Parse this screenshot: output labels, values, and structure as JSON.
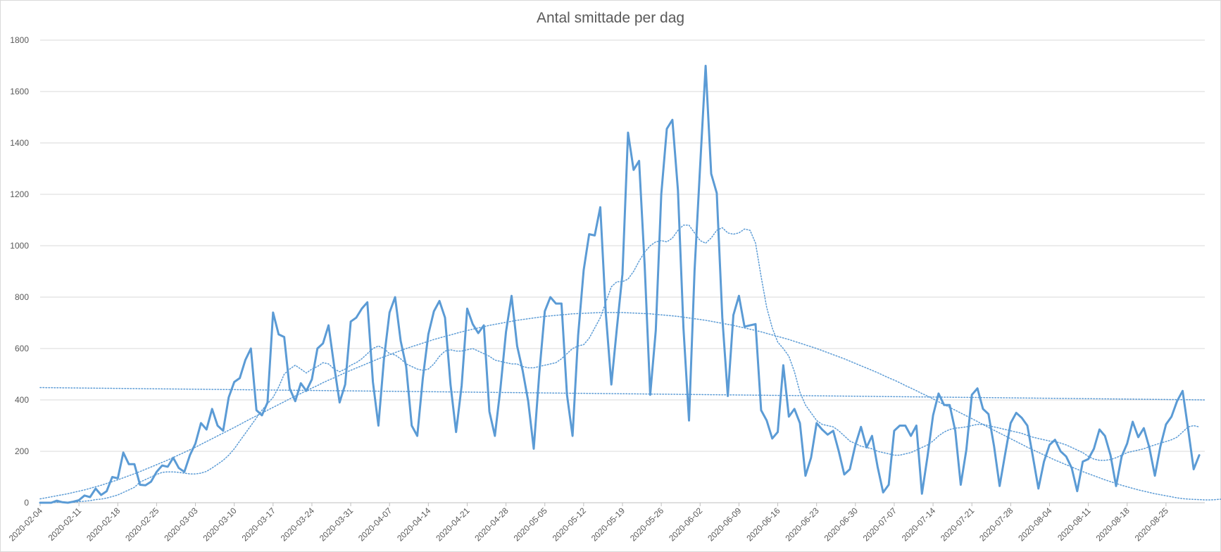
{
  "chart_data": {
    "type": "line",
    "title": "Antal smittade per dag",
    "xlabel": "",
    "ylabel": "",
    "ylim": [
      0,
      1800
    ],
    "yticks": [
      0,
      200,
      400,
      600,
      800,
      1000,
      1200,
      1400,
      1600,
      1800
    ],
    "grid": true,
    "legend": "none",
    "x_start": "2020-02-04",
    "x_end": "2020-09-01",
    "x_tick_labels": [
      "2020-02-04",
      "2020-02-11",
      "2020-02-18",
      "2020-02-25",
      "2020-03-03",
      "2020-03-10",
      "2020-03-17",
      "2020-03-24",
      "2020-03-31",
      "2020-04-07",
      "2020-04-14",
      "2020-04-21",
      "2020-04-28",
      "2020-05-05",
      "2020-05-12",
      "2020-05-19",
      "2020-05-26",
      "2020-06-02",
      "2020-06-09",
      "2020-06-16",
      "2020-06-23",
      "2020-06-30",
      "2020-07-07",
      "2020-07-14",
      "2020-07-21",
      "2020-07-28",
      "2020-08-04",
      "2020-08-11",
      "2020-08-18",
      "2020-08-25"
    ],
    "color": "#5b9bd5",
    "series": [
      {
        "style": "solid",
        "values": [
          0,
          0,
          0,
          8,
          2,
          0,
          4,
          10,
          28,
          22,
          55,
          30,
          45,
          100,
          95,
          195,
          150,
          150,
          70,
          68,
          82,
          120,
          145,
          140,
          175,
          135,
          120,
          185,
          230,
          310,
          285,
          365,
          300,
          280,
          410,
          470,
          485,
          555,
          600,
          360,
          340,
          390,
          740,
          655,
          645,
          445,
          395,
          465,
          435,
          480,
          600,
          620,
          690,
          535,
          390,
          460,
          705,
          720,
          755,
          780,
          470,
          300,
          560,
          740,
          800,
          630,
          530,
          300,
          260,
          485,
          655,
          745,
          785,
          720,
          460,
          275,
          455,
          755,
          695,
          660,
          690,
          355,
          260,
          445,
          665,
          805,
          610,
          515,
          395,
          210,
          505,
          745,
          800,
          775,
          775,
          420,
          260,
          650,
          905,
          1045,
          1040,
          1150,
          735,
          460,
          680,
          890,
          1440,
          1295,
          1330,
          925,
          420,
          670,
          1200,
          1455,
          1490,
          1215,
          680,
          320,
          905,
          1310,
          1700,
          1280,
          1205,
          720,
          415,
          730,
          805,
          685,
          690,
          695,
          360,
          320,
          250,
          275,
          535,
          335,
          365,
          310,
          105,
          175,
          310,
          285,
          265,
          280,
          200,
          110,
          130,
          225,
          295,
          215,
          260,
          140,
          40,
          70,
          280,
          300,
          300,
          260,
          300,
          35,
          180,
          340,
          425,
          380,
          380,
          280,
          70,
          205,
          420,
          445,
          365,
          345,
          220,
          65,
          190,
          310,
          350,
          330,
          300,
          180,
          55,
          160,
          225,
          245,
          200,
          180,
          135,
          45,
          160,
          170,
          210,
          285,
          260,
          185,
          65,
          180,
          230,
          315,
          255,
          290,
          215,
          105,
          220,
          305,
          335,
          395,
          435,
          285,
          130,
          185
        ]
      },
      {
        "style": "dotted",
        "note": "moving average",
        "values": [
          0,
          0,
          0,
          2,
          2,
          2,
          2,
          4,
          6,
          8,
          12,
          14,
          18,
          24,
          30,
          40,
          50,
          60,
          80,
          90,
          100,
          110,
          118,
          120,
          120,
          118,
          115,
          112,
          112,
          115,
          122,
          135,
          150,
          165,
          185,
          210,
          240,
          270,
          300,
          330,
          360,
          385,
          410,
          450,
          500,
          520,
          535,
          520,
          505,
          520,
          530,
          545,
          540,
          520,
          510,
          520,
          535,
          545,
          560,
          580,
          600,
          610,
          600,
          580,
          575,
          560,
          540,
          530,
          520,
          515,
          520,
          540,
          570,
          590,
          595,
          590,
          590,
          595,
          600,
          590,
          580,
          570,
          555,
          550,
          545,
          540,
          540,
          530,
          525,
          525,
          530,
          535,
          540,
          545,
          560,
          580,
          600,
          610,
          615,
          640,
          680,
          720,
          780,
          840,
          860,
          860,
          870,
          900,
          940,
          975,
          1000,
          1015,
          1020,
          1015,
          1030,
          1060,
          1080,
          1080,
          1050,
          1020,
          1010,
          1030,
          1060,
          1070,
          1050,
          1045,
          1050,
          1065,
          1060,
          1010,
          880,
          760,
          680,
          625,
          600,
          570,
          510,
          430,
          380,
          350,
          320,
          305,
          300,
          295,
          280,
          260,
          240,
          230,
          220,
          215,
          210,
          200,
          195,
          190,
          185,
          185,
          190,
          195,
          205,
          215,
          225,
          240,
          260,
          275,
          285,
          290,
          292,
          295,
          300,
          305,
          305,
          300,
          295,
          290,
          285,
          280,
          275,
          270,
          262,
          255,
          250,
          245,
          240,
          238,
          232,
          225,
          215,
          205,
          195,
          180,
          170,
          165,
          165,
          168,
          175,
          185,
          195,
          200,
          205,
          210,
          218,
          225,
          232,
          238,
          245,
          255,
          275,
          295,
          300,
          295
        ]
      },
      {
        "style": "dotted",
        "note": "polynomial trend",
        "values": [
          15,
          19,
          23,
          27,
          31,
          35,
          40,
          45,
          50,
          56,
          62,
          68,
          75,
          82,
          89,
          97,
          105,
          113,
          121,
          130,
          139,
          148,
          157,
          166,
          176,
          186,
          196,
          206,
          216,
          227,
          238,
          249,
          260,
          271,
          282,
          293,
          304,
          316,
          327,
          338,
          349,
          360,
          371,
          382,
          393,
          404,
          415,
          425,
          436,
          446,
          456,
          467,
          477,
          486,
          496,
          506,
          515,
          524,
          533,
          542,
          551,
          560,
          568,
          576,
          584,
          592,
          600,
          607,
          614,
          621,
          628,
          635,
          641,
          647,
          653,
          659,
          665,
          670,
          675,
          680,
          685,
          690,
          694,
          698,
          702,
          706,
          710,
          713,
          716,
          719,
          722,
          725,
          727,
          729,
          731,
          733,
          735,
          736,
          737,
          738,
          739,
          740,
          740,
          740,
          740,
          740,
          739,
          738,
          737,
          736,
          735,
          733,
          731,
          729,
          727,
          725,
          722,
          719,
          716,
          713,
          710,
          706,
          702,
          698,
          694,
          690,
          685,
          680,
          675,
          670,
          665,
          659,
          653,
          647,
          641,
          635,
          628,
          621,
          614,
          607,
          600,
          592,
          584,
          576,
          568,
          560,
          551,
          542,
          533,
          524,
          515,
          506,
          496,
          486,
          477,
          467,
          456,
          446,
          436,
          425,
          415,
          404,
          393,
          382,
          371,
          360,
          349,
          338,
          327,
          316,
          304,
          293,
          282,
          271,
          260,
          249,
          238,
          227,
          216,
          206,
          196,
          186,
          176,
          166,
          157,
          148,
          139,
          130,
          121,
          113,
          105,
          97,
          89,
          82,
          75,
          68,
          62,
          56,
          50,
          45,
          40,
          35,
          31,
          27,
          23,
          19,
          16,
          14,
          13,
          12,
          11,
          11,
          12,
          14,
          17,
          21,
          26,
          32,
          39,
          47,
          56,
          66,
          77,
          89,
          102
        ]
      },
      {
        "style": "dotted",
        "note": "linear trend",
        "start": 448,
        "end": 400
      }
    ]
  }
}
